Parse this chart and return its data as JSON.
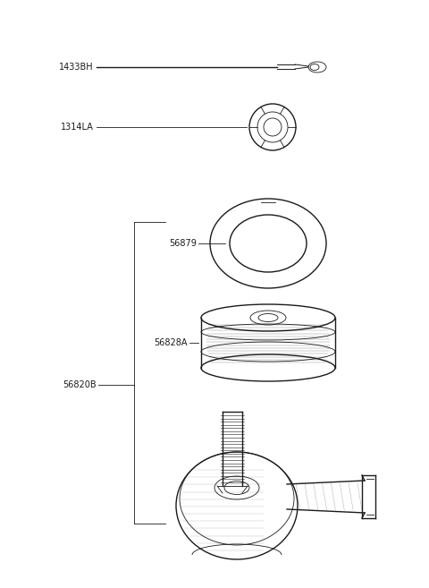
{
  "bg_color": "#ffffff",
  "line_color": "#1a1a1a",
  "figsize": [
    4.8,
    6.57
  ],
  "dpi": 100,
  "font_size": 7.0,
  "lw_main": 1.0,
  "lw_thin": 0.6,
  "pin_label": "1433BH",
  "nut_label": "1314LA",
  "ring_label": "56879",
  "bush_label": "56828A",
  "tie_label": "56820B"
}
